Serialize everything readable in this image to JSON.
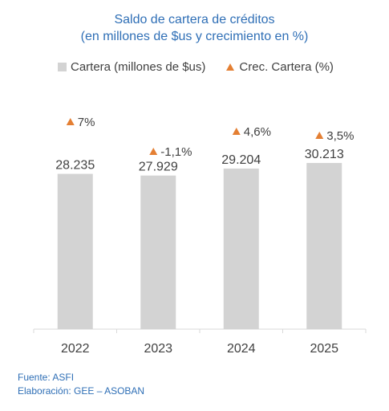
{
  "chart_data": {
    "type": "bar",
    "title": "Saldo de cartera de créditos",
    "subtitle": "(en millones de $us y crecimiento en %)",
    "categories": [
      "2022",
      "2023",
      "2024",
      "2025"
    ],
    "series": [
      {
        "name": "Cartera (millones de $us)",
        "values": [
          28235,
          27929,
          29204,
          30213
        ],
        "labels": [
          "28.235",
          "27.929",
          "29.204",
          "30.213"
        ],
        "color": "#d3d3d3"
      },
      {
        "name": "Crec. Cartera (%)",
        "values": [
          7,
          -1.1,
          4.6,
          3.5
        ],
        "labels": [
          "7%",
          "-1,1%",
          "4,6%",
          "3,5%"
        ],
        "color": "#e47f33",
        "marker": "triangle"
      }
    ],
    "grid": false,
    "legend": "top"
  },
  "footer": {
    "source": "Fuente: ASFI",
    "credit": "Elaboración: GEE – ASOBAN"
  }
}
